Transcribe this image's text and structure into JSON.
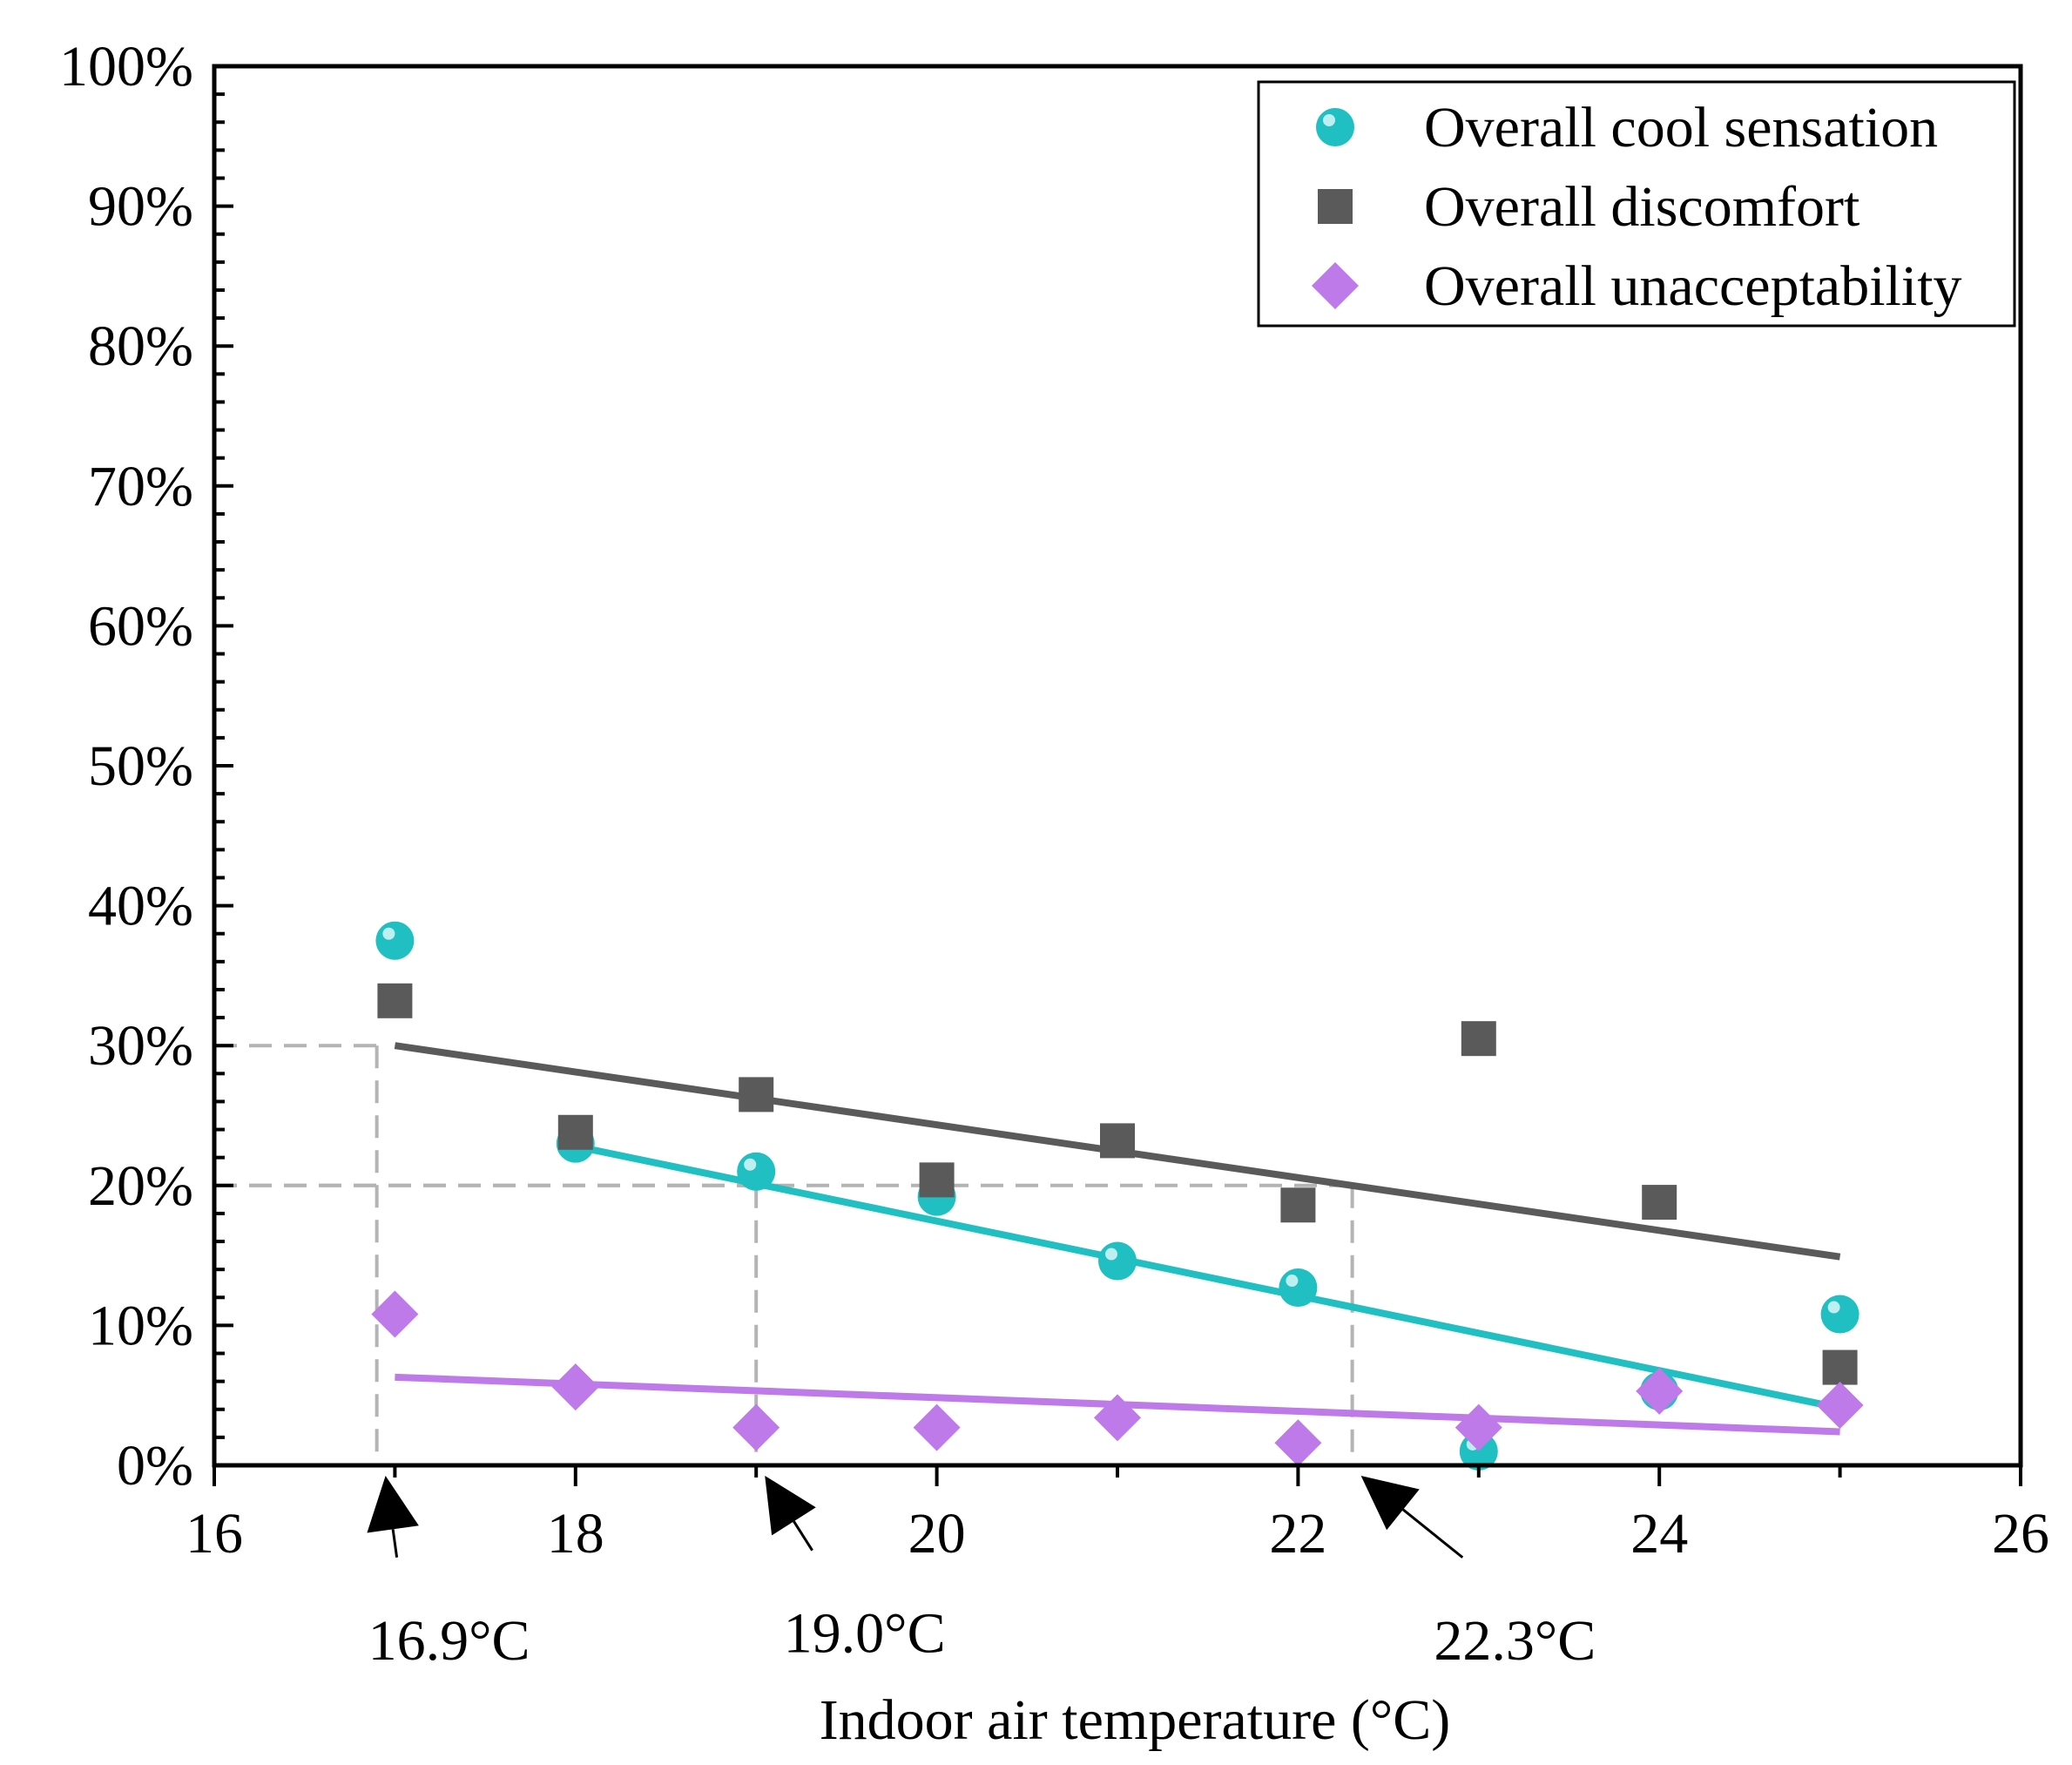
{
  "chart_data": {
    "type": "scatter",
    "title": "",
    "xlabel": "Indoor air temperature (°C)",
    "ylabel": "",
    "xlim": [
      16,
      26
    ],
    "ylim": [
      0,
      100
    ],
    "x_ticks": [
      16,
      18,
      20,
      22,
      24,
      26
    ],
    "x_tick_labels": [
      "16",
      "18",
      "20",
      "22",
      "24",
      "26"
    ],
    "y_ticks": [
      0,
      10,
      20,
      30,
      40,
      50,
      60,
      70,
      80,
      90,
      100
    ],
    "y_tick_labels": [
      "0%",
      "10%",
      "20%",
      "30%",
      "40%",
      "50%",
      "60%",
      "70%",
      "80%",
      "90%",
      "100%"
    ],
    "y_minor_step": 2,
    "legend_position": "top-right",
    "series": [
      {
        "name": "Overall cool sensation",
        "marker": "circle",
        "color": "#1fbfc2",
        "points": [
          [
            17,
            37.5
          ],
          [
            18,
            23
          ],
          [
            19,
            21
          ],
          [
            20,
            19.2
          ],
          [
            21,
            14.6
          ],
          [
            22,
            12.7
          ],
          [
            23,
            1
          ],
          [
            24,
            5.3
          ],
          [
            25,
            10.8
          ]
        ],
        "fit": [
          [
            18,
            22.8
          ],
          [
            25,
            4.1
          ]
        ]
      },
      {
        "name": "Overall discomfort",
        "marker": "square",
        "color": "#5a5a5a",
        "points": [
          [
            17,
            33.2
          ],
          [
            18,
            23.8
          ],
          [
            19,
            26.5
          ],
          [
            20,
            20.4
          ],
          [
            21,
            23.2
          ],
          [
            22,
            18.6
          ],
          [
            23,
            30.5
          ],
          [
            24,
            18.8
          ],
          [
            25,
            7
          ]
        ],
        "fit": [
          [
            17,
            30
          ],
          [
            25,
            14.9
          ]
        ]
      },
      {
        "name": "Overall unacceptability",
        "marker": "diamond",
        "color": "#bd7ae8",
        "points": [
          [
            17,
            10.8
          ],
          [
            18,
            5.6
          ],
          [
            19,
            2.7
          ],
          [
            20,
            2.7
          ],
          [
            21,
            3.4
          ],
          [
            22,
            1.6
          ],
          [
            23,
            2.7
          ],
          [
            24,
            5.3
          ],
          [
            25,
            4.3
          ]
        ],
        "fit": [
          [
            17,
            6.3
          ],
          [
            25,
            2.4
          ]
        ]
      }
    ],
    "reference_lines": [
      {
        "x": 16.9,
        "y": 30,
        "label": "16.9°C",
        "label_x": 17.3,
        "label_y": -12.5
      },
      {
        "x": 19.0,
        "y": 20,
        "label": "19.0°C",
        "label_x": 19.6,
        "label_y": -12
      },
      {
        "x": 22.3,
        "y": 20,
        "label": "22.3°C",
        "label_x": 23.2,
        "label_y": -12.5
      }
    ],
    "reference_color": "#b4b4b4"
  }
}
